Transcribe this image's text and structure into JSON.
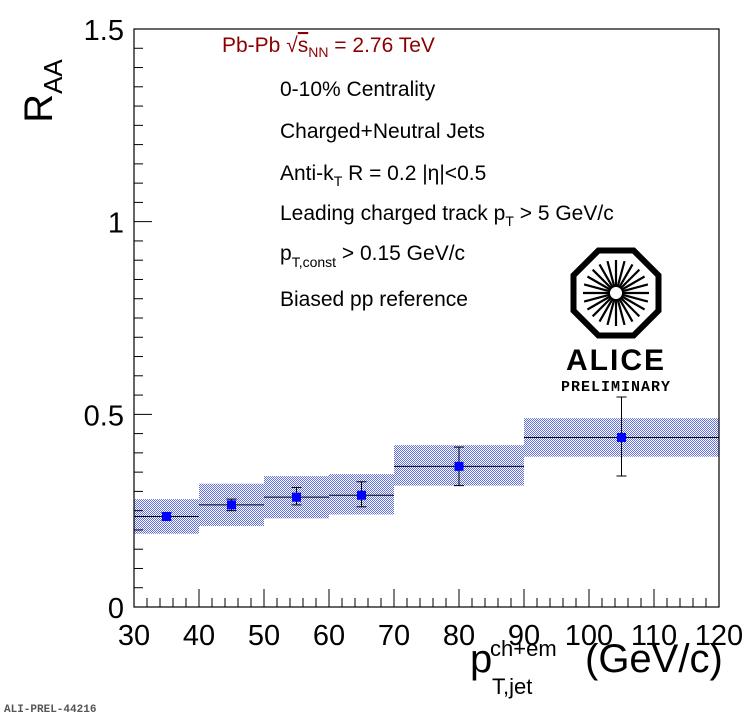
{
  "chart_data": {
    "type": "scatter",
    "x_axis": {
      "label_main": "p",
      "label_sup": "ch+em",
      "label_sub": "T,jet",
      "label_unit": "(GeV/c)",
      "range": [
        30,
        120
      ],
      "ticks": [
        30,
        40,
        50,
        60,
        70,
        80,
        90,
        100,
        110,
        120
      ],
      "tick_labels": [
        "30",
        "40",
        "50",
        "60",
        "70",
        "80",
        "90",
        "100",
        "110",
        "120"
      ]
    },
    "y_axis": {
      "label_main": "R",
      "label_sub": "AA",
      "range": [
        0,
        1.5
      ],
      "ticks": [
        0,
        0.5,
        1,
        1.5
      ],
      "tick_labels": [
        "0",
        "0.5",
        "1",
        "1.5"
      ]
    },
    "points": [
      {
        "x": 35,
        "x_low": 30,
        "x_high": 40,
        "y": 0.235,
        "stat_low": 0.225,
        "stat_high": 0.245,
        "sys_low": 0.19,
        "sys_high": 0.28
      },
      {
        "x": 45,
        "x_low": 40,
        "x_high": 50,
        "y": 0.265,
        "stat_low": 0.25,
        "stat_high": 0.28,
        "sys_low": 0.21,
        "sys_high": 0.32
      },
      {
        "x": 55,
        "x_low": 50,
        "x_high": 60,
        "y": 0.285,
        "stat_low": 0.265,
        "stat_high": 0.31,
        "sys_low": 0.23,
        "sys_high": 0.34
      },
      {
        "x": 65,
        "x_low": 60,
        "x_high": 70,
        "y": 0.29,
        "stat_low": 0.26,
        "stat_high": 0.325,
        "sys_low": 0.24,
        "sys_high": 0.345
      },
      {
        "x": 80,
        "x_low": 70,
        "x_high": 90,
        "y": 0.365,
        "stat_low": 0.315,
        "stat_high": 0.415,
        "sys_low": 0.315,
        "sys_high": 0.42
      },
      {
        "x": 105,
        "x_low": 90,
        "x_high": 120,
        "y": 0.44,
        "stat_low": 0.34,
        "stat_high": 0.545,
        "sys_low": 0.39,
        "sys_high": 0.49
      }
    ],
    "annotations": {
      "system_prefix": "Pb-Pb ",
      "sqrt_symbol": "√",
      "s_letter": "s",
      "s_sub": "NN",
      "energy": " = 2.76 TeV",
      "centrality": "0-10% Centrality",
      "jets": "Charged+Neutral Jets",
      "algo_prefix": "Anti-k",
      "algo_sub": "T",
      "algo_suffix": " R = 0.2 |η|<0.5",
      "leading_prefix": "Leading charged track p",
      "leading_sub": "T",
      "leading_suffix": " > 5 GeV/c",
      "const_main": "p",
      "const_sub": "T,const",
      "const_suffix": " > 0.15 GeV/c",
      "reference": "Biased pp reference"
    },
    "logo_text": "ALICE",
    "logo_subtext": "PRELIMINARY",
    "figure_id": "ALI-PREL-44216"
  },
  "colors": {
    "marker": "#0000ff",
    "band": "#3a4bd6",
    "annotation_red": "#8b0000",
    "text": "#000000"
  }
}
